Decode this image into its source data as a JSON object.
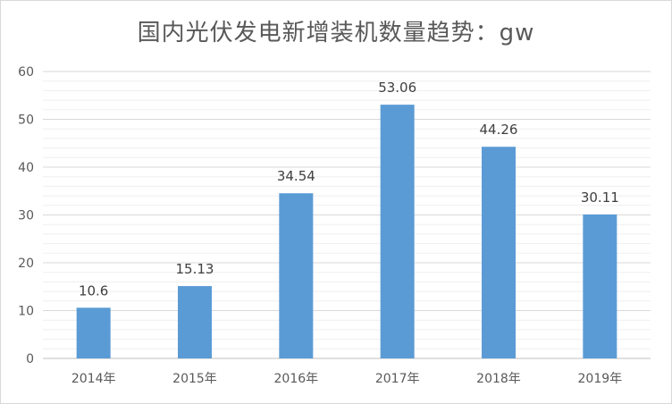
{
  "chart_data": {
    "type": "bar",
    "title": "国内光伏发电新增装机数量趋势：gw",
    "categories": [
      "2014年",
      "2015年",
      "2016年",
      "2017年",
      "2018年",
      "2019年"
    ],
    "values": [
      10.6,
      15.13,
      34.54,
      53.06,
      44.26,
      30.11
    ],
    "value_labels": [
      "10.6",
      "15.13",
      "34.54",
      "53.06",
      "44.26",
      "30.11"
    ],
    "ylim": [
      0,
      60
    ],
    "yticks": [
      "0",
      "10",
      "20",
      "30",
      "40",
      "50",
      "60"
    ],
    "grid": true,
    "bar_color": "#5b9bd5"
  }
}
